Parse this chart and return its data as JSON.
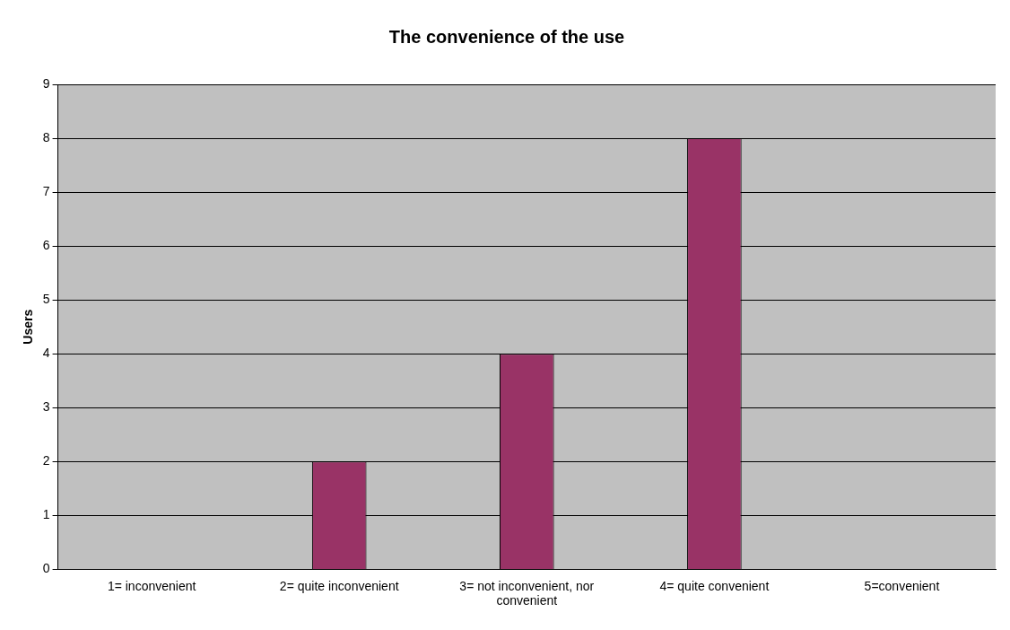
{
  "chart_data": {
    "type": "bar",
    "title": "The convenience of the use",
    "ylabel": "Users",
    "categories": [
      "1= inconvenient",
      "2= quite inconvenient",
      "3= not inconvenient, nor convenient",
      "4= quite convenient",
      "5=convenient"
    ],
    "values": [
      0,
      2,
      4,
      8,
      0
    ],
    "color": "#993366",
    "ylim": [
      0,
      9
    ],
    "yticks": [
      0,
      1,
      2,
      3,
      4,
      5,
      6,
      7,
      8,
      9
    ],
    "grid": "y",
    "legend": false
  }
}
